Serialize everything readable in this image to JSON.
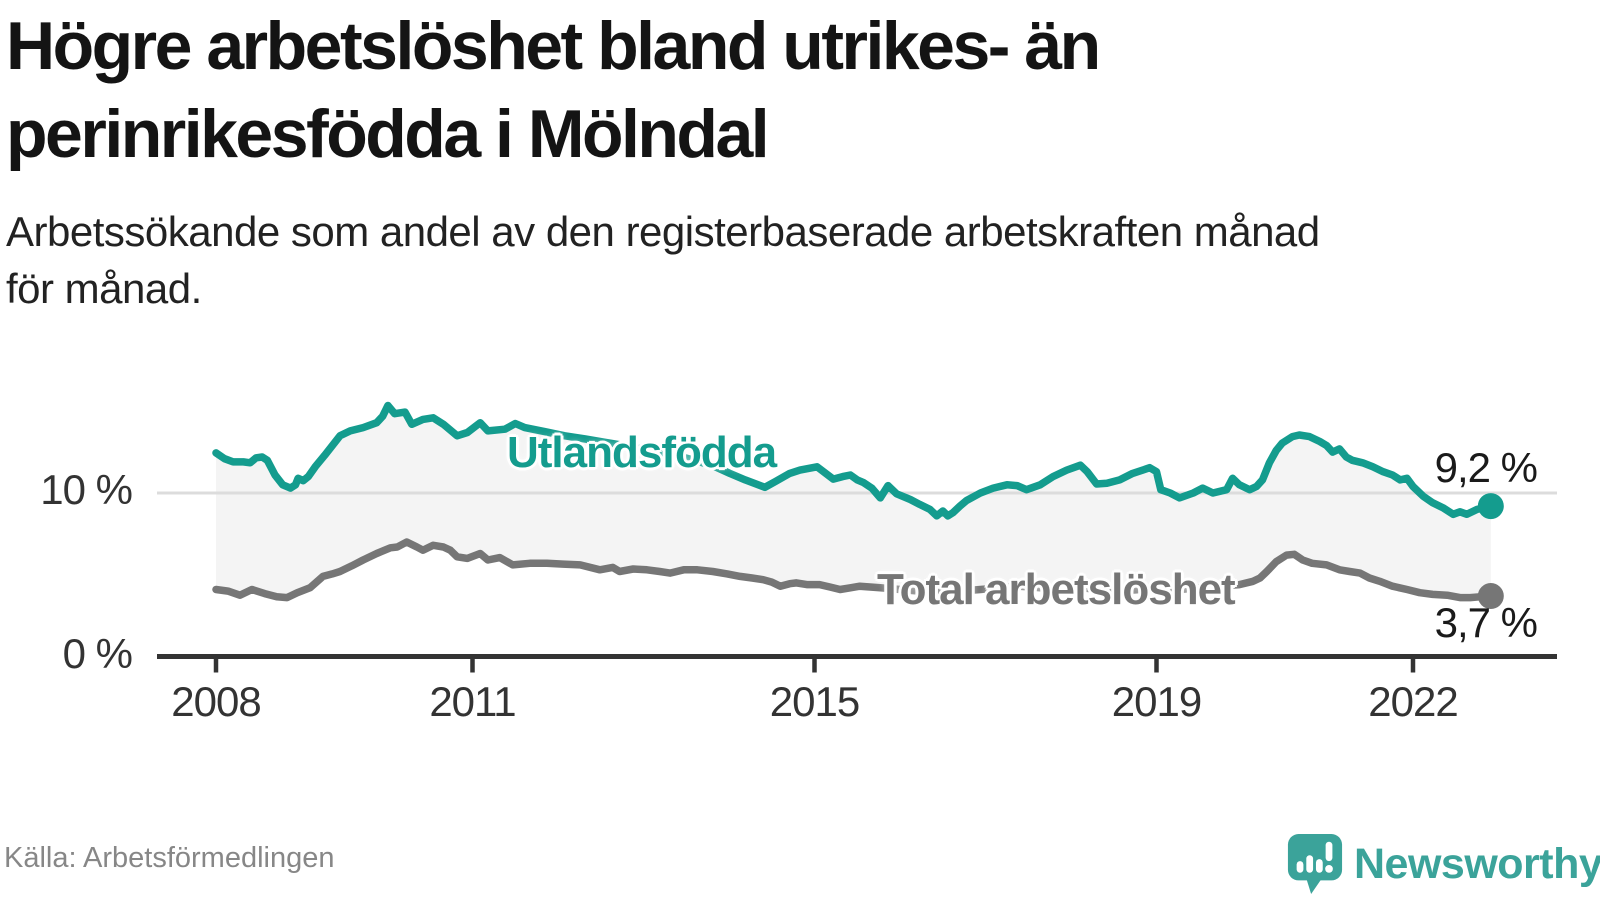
{
  "header": {
    "title_lines": [
      "Högre arbetslöshet bland utrikes- än",
      "inrikesfödda i Mölndal"
    ],
    "subtitle_lines": [
      "Arbetssökande som andel av den registerbaserade arbetskraften månad",
      "för månad."
    ]
  },
  "footer": {
    "source": "Källa: Arbetsförmedlingen",
    "brand": "Newsworthy"
  },
  "colors": {
    "teal_line": "#149c8e",
    "gray_line": "#767676",
    "fill_between": "#f4f4f4",
    "gridline": "#dcdcdc",
    "axis": "#333333",
    "brand_teal": "#3ba39a"
  },
  "chart_data": {
    "type": "line",
    "title": "Högre arbetslöshet bland utrikes- än inrikesfödda i Mölndal",
    "subtitle": "Arbetssökande som andel av den registerbaserade arbetskraften månad för månad.",
    "source": "Källa: Arbetsförmedlingen",
    "x_ticks": [
      2008,
      2011,
      2015,
      2019,
      2022
    ],
    "y_ticks": [
      {
        "value": 0,
        "label": "0 %"
      },
      {
        "value": 10,
        "label": "10 %"
      }
    ],
    "x_range": [
      2008.0,
      2022.91
    ],
    "ylim": [
      0,
      16
    ],
    "grid": "single-horizontal-at-10",
    "legend_position": "inline-labels",
    "series": [
      {
        "name": "Utlandsfödda",
        "end_label": "9,2 %",
        "end_value": 9.2,
        "points": [
          [
            2008.0,
            12.45
          ],
          [
            2008.1,
            12.1
          ],
          [
            2008.2,
            11.9
          ],
          [
            2008.32,
            11.9
          ],
          [
            2008.4,
            11.85
          ],
          [
            2008.47,
            12.15
          ],
          [
            2008.54,
            12.2
          ],
          [
            2008.6,
            12.0
          ],
          [
            2008.69,
            11.1
          ],
          [
            2008.78,
            10.5
          ],
          [
            2008.87,
            10.3
          ],
          [
            2008.93,
            10.5
          ],
          [
            2008.96,
            10.9
          ],
          [
            2009.02,
            10.75
          ],
          [
            2009.08,
            11.0
          ],
          [
            2009.16,
            11.6
          ],
          [
            2009.27,
            12.3
          ],
          [
            2009.45,
            13.5
          ],
          [
            2009.57,
            13.8
          ],
          [
            2009.72,
            14.0
          ],
          [
            2009.88,
            14.3
          ],
          [
            2009.95,
            14.7
          ],
          [
            2010.01,
            15.35
          ],
          [
            2010.09,
            14.85
          ],
          [
            2010.21,
            14.95
          ],
          [
            2010.29,
            14.2
          ],
          [
            2010.42,
            14.5
          ],
          [
            2010.54,
            14.6
          ],
          [
            2010.66,
            14.2
          ],
          [
            2010.82,
            13.5
          ],
          [
            2010.94,
            13.7
          ],
          [
            2011.09,
            14.3
          ],
          [
            2011.18,
            13.8
          ],
          [
            2011.38,
            13.9
          ],
          [
            2011.5,
            14.25
          ],
          [
            2011.61,
            14.0
          ],
          [
            2011.85,
            13.75
          ],
          [
            2012.08,
            13.5
          ],
          [
            2012.32,
            13.3
          ],
          [
            2012.55,
            13.1
          ],
          [
            2012.78,
            12.9
          ],
          [
            2013.02,
            12.65
          ],
          [
            2013.25,
            12.4
          ],
          [
            2013.49,
            12.15
          ],
          [
            2013.66,
            11.9
          ],
          [
            2013.84,
            11.6
          ],
          [
            2014.01,
            11.2
          ],
          [
            2014.19,
            10.8
          ],
          [
            2014.34,
            10.5
          ],
          [
            2014.42,
            10.35
          ],
          [
            2014.54,
            10.7
          ],
          [
            2014.71,
            11.2
          ],
          [
            2014.83,
            11.4
          ],
          [
            2015.03,
            11.6
          ],
          [
            2015.22,
            10.85
          ],
          [
            2015.33,
            11.0
          ],
          [
            2015.42,
            11.1
          ],
          [
            2015.5,
            10.8
          ],
          [
            2015.57,
            10.65
          ],
          [
            2015.67,
            10.3
          ],
          [
            2015.77,
            9.7
          ],
          [
            2015.86,
            10.45
          ],
          [
            2015.96,
            9.95
          ],
          [
            2016.12,
            9.6
          ],
          [
            2016.23,
            9.3
          ],
          [
            2016.35,
            9.0
          ],
          [
            2016.43,
            8.6
          ],
          [
            2016.5,
            8.9
          ],
          [
            2016.56,
            8.6
          ],
          [
            2016.62,
            8.8
          ],
          [
            2016.7,
            9.2
          ],
          [
            2016.78,
            9.55
          ],
          [
            2016.94,
            10.0
          ],
          [
            2017.09,
            10.3
          ],
          [
            2017.25,
            10.5
          ],
          [
            2017.37,
            10.45
          ],
          [
            2017.48,
            10.2
          ],
          [
            2017.64,
            10.5
          ],
          [
            2017.79,
            11.0
          ],
          [
            2017.95,
            11.4
          ],
          [
            2018.11,
            11.7
          ],
          [
            2018.19,
            11.3
          ],
          [
            2018.3,
            10.55
          ],
          [
            2018.42,
            10.6
          ],
          [
            2018.57,
            10.8
          ],
          [
            2018.72,
            11.2
          ],
          [
            2018.84,
            11.4
          ],
          [
            2018.92,
            11.55
          ],
          [
            2019.0,
            11.3
          ],
          [
            2019.05,
            10.2
          ],
          [
            2019.16,
            10.0
          ],
          [
            2019.27,
            9.7
          ],
          [
            2019.43,
            10.0
          ],
          [
            2019.54,
            10.3
          ],
          [
            2019.66,
            10.0
          ],
          [
            2019.82,
            10.2
          ],
          [
            2019.89,
            10.9
          ],
          [
            2019.97,
            10.5
          ],
          [
            2020.09,
            10.2
          ],
          [
            2020.17,
            10.4
          ],
          [
            2020.24,
            10.8
          ],
          [
            2020.32,
            11.85
          ],
          [
            2020.4,
            12.6
          ],
          [
            2020.47,
            13.05
          ],
          [
            2020.59,
            13.45
          ],
          [
            2020.67,
            13.55
          ],
          [
            2020.79,
            13.45
          ],
          [
            2020.91,
            13.15
          ],
          [
            2020.99,
            12.9
          ],
          [
            2021.06,
            12.5
          ],
          [
            2021.14,
            12.7
          ],
          [
            2021.22,
            12.2
          ],
          [
            2021.29,
            12.0
          ],
          [
            2021.41,
            11.85
          ],
          [
            2021.53,
            11.6
          ],
          [
            2021.65,
            11.3
          ],
          [
            2021.76,
            11.1
          ],
          [
            2021.85,
            10.8
          ],
          [
            2021.93,
            10.9
          ],
          [
            2022.0,
            10.4
          ],
          [
            2022.12,
            9.8
          ],
          [
            2022.23,
            9.4
          ],
          [
            2022.35,
            9.1
          ],
          [
            2022.47,
            8.7
          ],
          [
            2022.55,
            8.85
          ],
          [
            2022.63,
            8.7
          ],
          [
            2022.75,
            9.0
          ],
          [
            2022.91,
            9.2
          ]
        ]
      },
      {
        "name": "Total arbetslöshet",
        "end_label": "3,7 %",
        "end_value": 3.7,
        "points": [
          [
            2008.0,
            4.1
          ],
          [
            2008.14,
            4.0
          ],
          [
            2008.28,
            3.75
          ],
          [
            2008.42,
            4.1
          ],
          [
            2008.57,
            3.85
          ],
          [
            2008.71,
            3.65
          ],
          [
            2008.83,
            3.6
          ],
          [
            2008.95,
            3.9
          ],
          [
            2009.1,
            4.2
          ],
          [
            2009.25,
            4.9
          ],
          [
            2009.36,
            5.05
          ],
          [
            2009.45,
            5.2
          ],
          [
            2009.59,
            5.55
          ],
          [
            2009.72,
            5.9
          ],
          [
            2009.88,
            6.3
          ],
          [
            2010.04,
            6.65
          ],
          [
            2010.12,
            6.7
          ],
          [
            2010.23,
            7.0
          ],
          [
            2010.35,
            6.7
          ],
          [
            2010.42,
            6.5
          ],
          [
            2010.54,
            6.8
          ],
          [
            2010.66,
            6.7
          ],
          [
            2010.74,
            6.5
          ],
          [
            2010.82,
            6.1
          ],
          [
            2010.94,
            6.0
          ],
          [
            2011.09,
            6.3
          ],
          [
            2011.18,
            5.9
          ],
          [
            2011.32,
            6.05
          ],
          [
            2011.47,
            5.6
          ],
          [
            2011.67,
            5.7
          ],
          [
            2011.87,
            5.7
          ],
          [
            2012.06,
            5.65
          ],
          [
            2012.26,
            5.6
          ],
          [
            2012.49,
            5.3
          ],
          [
            2012.64,
            5.45
          ],
          [
            2012.72,
            5.2
          ],
          [
            2012.88,
            5.35
          ],
          [
            2013.04,
            5.3
          ],
          [
            2013.19,
            5.2
          ],
          [
            2013.31,
            5.1
          ],
          [
            2013.47,
            5.3
          ],
          [
            2013.63,
            5.3
          ],
          [
            2013.81,
            5.2
          ],
          [
            2013.98,
            5.05
          ],
          [
            2014.13,
            4.9
          ],
          [
            2014.27,
            4.8
          ],
          [
            2014.4,
            4.7
          ],
          [
            2014.5,
            4.55
          ],
          [
            2014.6,
            4.3
          ],
          [
            2014.71,
            4.45
          ],
          [
            2014.79,
            4.5
          ],
          [
            2014.91,
            4.4
          ],
          [
            2015.06,
            4.4
          ],
          [
            2015.18,
            4.25
          ],
          [
            2015.3,
            4.1
          ],
          [
            2015.42,
            4.2
          ],
          [
            2015.53,
            4.3
          ],
          [
            2015.77,
            4.2
          ],
          [
            2016.0,
            4.1
          ],
          [
            2016.23,
            4.0
          ],
          [
            2016.47,
            3.9
          ],
          [
            2016.7,
            4.0
          ],
          [
            2016.94,
            4.1
          ],
          [
            2017.17,
            4.2
          ],
          [
            2017.4,
            4.3
          ],
          [
            2017.64,
            4.2
          ],
          [
            2017.87,
            4.1
          ],
          [
            2018.11,
            4.2
          ],
          [
            2018.34,
            4.1
          ],
          [
            2018.57,
            4.0
          ],
          [
            2018.81,
            4.1
          ],
          [
            2019.04,
            4.2
          ],
          [
            2019.27,
            4.1
          ],
          [
            2019.51,
            4.2
          ],
          [
            2019.74,
            4.3
          ],
          [
            2019.97,
            4.4
          ],
          [
            2020.13,
            4.6
          ],
          [
            2020.21,
            4.8
          ],
          [
            2020.29,
            5.2
          ],
          [
            2020.4,
            5.8
          ],
          [
            2020.52,
            6.2
          ],
          [
            2020.61,
            6.25
          ],
          [
            2020.71,
            5.9
          ],
          [
            2020.82,
            5.7
          ],
          [
            2020.99,
            5.6
          ],
          [
            2021.14,
            5.3
          ],
          [
            2021.26,
            5.2
          ],
          [
            2021.38,
            5.1
          ],
          [
            2021.49,
            4.8
          ],
          [
            2021.61,
            4.6
          ],
          [
            2021.76,
            4.3
          ],
          [
            2021.93,
            4.1
          ],
          [
            2022.08,
            3.9
          ],
          [
            2022.23,
            3.8
          ],
          [
            2022.4,
            3.75
          ],
          [
            2022.55,
            3.6
          ],
          [
            2022.67,
            3.6
          ],
          [
            2022.78,
            3.65
          ],
          [
            2022.91,
            3.7
          ]
        ]
      }
    ]
  }
}
